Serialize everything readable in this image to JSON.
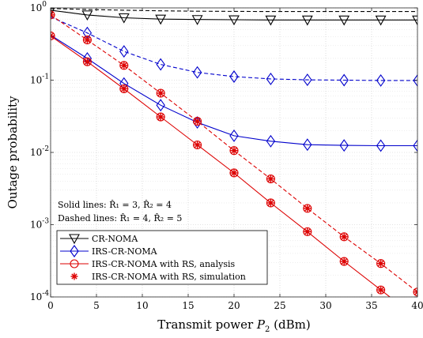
{
  "chart_data": {
    "type": "line",
    "xlabel": "Transmit power P_2 (dBm)",
    "ylabel": "Outage probability",
    "xlim": [
      0,
      40
    ],
    "ylim": [
      0.0001,
      1
    ],
    "yscale": "log",
    "xticks": [
      "0",
      "5",
      "10",
      "15",
      "20",
      "25",
      "30",
      "35",
      "40"
    ],
    "yticks": [
      {
        "base": "10",
        "exp": "-4"
      },
      {
        "base": "10",
        "exp": "-3"
      },
      {
        "base": "10",
        "exp": "-2"
      },
      {
        "base": "10",
        "exp": "-1"
      },
      {
        "base": "10",
        "exp": "0"
      }
    ],
    "grid": true,
    "annotations": [
      "Solid lines: R̂₁ = 3, R̂₂ = 4",
      "Dashed lines: R̂₁ = 4, R̂₂ = 5"
    ],
    "legend_position": "bottom-left",
    "legend": [
      "CR-NOMA",
      "IRS-CR-NOMA",
      "IRS-CR-NOMA with RS, analysis",
      "IRS-CR-NOMA with RS, simulation"
    ],
    "series": [
      {
        "legend": "CR-NOMA",
        "line": "solid",
        "color": "#000000",
        "marker": "triangle-down",
        "x": [
          0,
          4,
          8,
          12,
          16,
          20,
          24,
          28,
          32,
          36,
          40
        ],
        "y": [
          0.93,
          0.8,
          0.73,
          0.7,
          0.69,
          0.685,
          0.68,
          0.68,
          0.68,
          0.68,
          0.68
        ],
        "marker_x": [
          0,
          4,
          8,
          12,
          16,
          20,
          24,
          28,
          32,
          36,
          40
        ]
      },
      {
        "legend": "CR-NOMA",
        "line": "dashed",
        "color": "#000000",
        "marker": "triangle-down",
        "x": [
          0,
          4,
          8,
          12,
          16,
          20,
          24,
          28,
          32,
          36,
          40
        ],
        "y": [
          0.98,
          0.95,
          0.93,
          0.91,
          0.9,
          0.895,
          0.89,
          0.89,
          0.89,
          0.89,
          0.89
        ],
        "marker_x": []
      },
      {
        "legend": "IRS-CR-NOMA",
        "line": "solid",
        "color": "#0000cc",
        "marker": "diamond",
        "x": [
          0,
          4,
          8,
          12,
          16,
          20,
          24,
          28,
          32,
          36,
          40
        ],
        "y": [
          0.42,
          0.2,
          0.09,
          0.045,
          0.026,
          0.017,
          0.0143,
          0.0128,
          0.0125,
          0.0124,
          0.0124
        ],
        "marker_x": [
          4,
          8,
          12,
          16,
          20,
          24,
          28,
          32,
          36,
          40
        ]
      },
      {
        "legend": "IRS-CR-NOMA",
        "line": "dashed",
        "color": "#0000cc",
        "marker": "diamond",
        "x": [
          0,
          4,
          8,
          12,
          16,
          20,
          24,
          28,
          32,
          36,
          40
        ],
        "y": [
          0.75,
          0.45,
          0.25,
          0.165,
          0.128,
          0.112,
          0.104,
          0.101,
          0.1,
          0.099,
          0.099
        ],
        "marker_x": [
          4,
          8,
          12,
          16,
          20,
          24,
          28,
          32,
          36,
          40
        ]
      },
      {
        "legend": "IRS-CR-NOMA with RS, analysis",
        "line": "solid",
        "color": "#dd0000",
        "marker": "circle",
        "x": [
          0,
          4,
          8,
          12,
          16,
          20,
          24,
          28,
          32,
          36,
          40
        ],
        "y": [
          0.41,
          0.18,
          0.076,
          0.031,
          0.0127,
          0.0052,
          0.002,
          0.0008,
          0.00031,
          0.000125,
          5.05e-05
        ],
        "marker_x": [
          0,
          4,
          8,
          12,
          16,
          20,
          24,
          28,
          32,
          36
        ]
      },
      {
        "legend": "IRS-CR-NOMA with RS, analysis",
        "line": "dashed",
        "color": "#dd0000",
        "marker": "circle",
        "x": [
          0,
          4,
          8,
          12,
          16,
          20,
          24,
          28,
          32,
          36,
          40
        ],
        "y": [
          0.8,
          0.36,
          0.16,
          0.066,
          0.027,
          0.0106,
          0.0043,
          0.00168,
          0.00068,
          0.00029,
          0.000117
        ],
        "marker_x": [
          0,
          4,
          8,
          12,
          16,
          20,
          24,
          28,
          32,
          36,
          40
        ]
      },
      {
        "legend": "IRS-CR-NOMA with RS, simulation",
        "line": "none",
        "color": "#dd0000",
        "marker": "asterisk",
        "x": [
          0,
          4,
          8,
          12,
          16,
          20,
          24,
          28,
          32,
          36,
          40
        ],
        "y": [
          0.41,
          0.18,
          0.076,
          0.031,
          0.0127,
          0.0052,
          0.002,
          0.0008,
          0.00031,
          0.000125,
          5.05e-05
        ],
        "marker_x": [
          0,
          4,
          8,
          12,
          16,
          20,
          24,
          28,
          32,
          36
        ]
      },
      {
        "legend": "IRS-CR-NOMA with RS, simulation",
        "line": "none",
        "color": "#dd0000",
        "marker": "asterisk",
        "x": [
          0,
          4,
          8,
          12,
          16,
          20,
          24,
          28,
          32,
          36,
          40
        ],
        "y": [
          0.8,
          0.36,
          0.16,
          0.066,
          0.027,
          0.0106,
          0.0043,
          0.00168,
          0.00068,
          0.00029,
          0.000117
        ],
        "marker_x": [
          0,
          4,
          8,
          12,
          16,
          20,
          24,
          28,
          32,
          36,
          40
        ]
      }
    ]
  }
}
